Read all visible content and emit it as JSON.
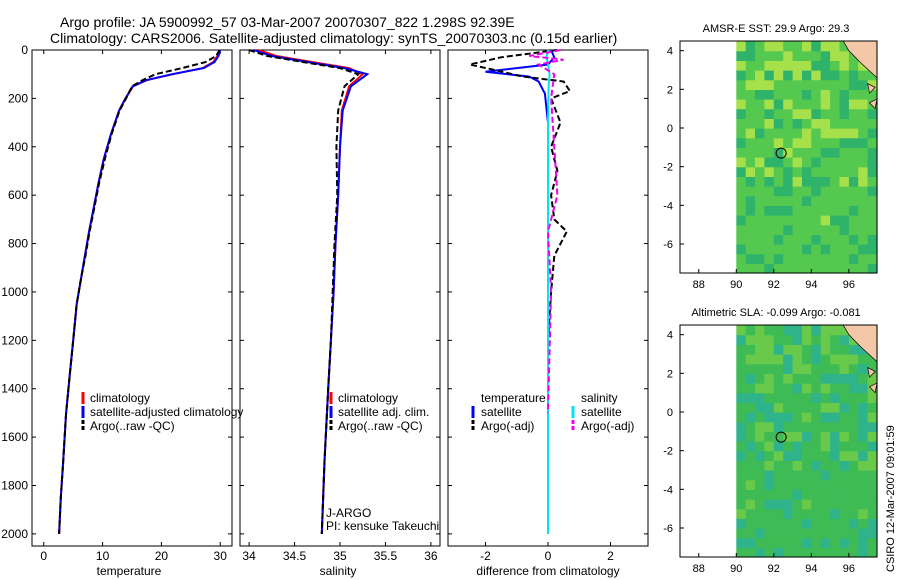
{
  "header": {
    "title_line1": "Argo profile: JA 5900992_57 03-Mar-2007 20070307_822 1.298S 92.39E",
    "title_line2": "Climatology: CARS2006. Satellite-adjusted climatology: synTS_20070303.nc (0.15d earlier)"
  },
  "footer": {
    "stamp": "CSIRO 12-Mar-2007 09:01:59"
  },
  "colors": {
    "climatology": "#ff0000",
    "satellite": "#0000ff",
    "argo": "#000000",
    "sat_salinity": "#00e5ee",
    "argo_salinity_adj": "#ee00ee",
    "land": "#f4c7a8"
  },
  "chart_data": [
    {
      "type": "line",
      "panel": "temperature",
      "xlabel": "temperature",
      "ylabel": "",
      "xlim": [
        -2,
        32
      ],
      "ylim": [
        2050,
        0
      ],
      "xticks": [
        0,
        10,
        20,
        30
      ],
      "yticks": [
        0,
        200,
        400,
        600,
        800,
        1000,
        1200,
        1400,
        1600,
        1800,
        2000
      ],
      "legend": [
        "climatology",
        "satellite-adjusted climatology",
        "Argo(..raw -QC)"
      ],
      "series": [
        {
          "name": "climatology",
          "style": "solid",
          "color": "#ff0000",
          "x": [
            29.9,
            29.5,
            28.8,
            27.0,
            22.0,
            17.5,
            15.2,
            13.9,
            12.8,
            11.4,
            10.2,
            9.3,
            8.5,
            7.7,
            7.0,
            6.3,
            5.6,
            5.0,
            4.4,
            3.8,
            3.3,
            2.9,
            2.6
          ],
          "y": [
            0,
            25,
            50,
            75,
            100,
            125,
            150,
            200,
            250,
            350,
            450,
            550,
            650,
            750,
            850,
            950,
            1050,
            1200,
            1350,
            1500,
            1700,
            1850,
            2000
          ]
        },
        {
          "name": "satellite-adjusted climatology",
          "style": "solid",
          "color": "#0000ff",
          "x": [
            30.0,
            29.7,
            29.0,
            27.2,
            21.8,
            17.4,
            15.1,
            13.9,
            12.8,
            11.4,
            10.2,
            9.3,
            8.5,
            7.7,
            7.0,
            6.3,
            5.6,
            5.0,
            4.4,
            3.8,
            3.3,
            2.9,
            2.6
          ],
          "y": [
            0,
            25,
            50,
            75,
            100,
            125,
            150,
            200,
            250,
            350,
            450,
            550,
            650,
            750,
            850,
            950,
            1050,
            1200,
            1350,
            1500,
            1700,
            1850,
            2000
          ]
        },
        {
          "name": "Argo(..raw -QC)",
          "style": "dashed",
          "color": "#000000",
          "x": [
            29.9,
            29.3,
            27.5,
            23.5,
            19.0,
            16.8,
            15.0,
            14.0,
            12.9,
            11.5,
            10.4,
            9.4,
            8.6,
            7.8,
            7.1,
            6.3,
            5.6,
            5.0,
            4.4,
            3.8,
            3.3,
            2.9,
            2.6
          ],
          "y": [
            0,
            25,
            50,
            75,
            100,
            125,
            150,
            200,
            250,
            350,
            450,
            550,
            650,
            750,
            850,
            950,
            1050,
            1200,
            1350,
            1500,
            1700,
            1850,
            2000
          ]
        }
      ]
    },
    {
      "type": "line",
      "panel": "salinity",
      "xlabel": "salinity",
      "ylabel": "",
      "xlim": [
        33.9,
        36.1
      ],
      "ylim": [
        2050,
        0
      ],
      "xticks": [
        34,
        34.5,
        35,
        35.5,
        36
      ],
      "legend": [
        "climatology",
        "satellite adj. clim.",
        "Argo(..raw -QC)"
      ],
      "annotation_line1": "J-ARGO",
      "annotation_line2": "PI: kensuke Takeuchi",
      "series": [
        {
          "name": "climatology",
          "style": "solid",
          "color": "#ff0000",
          "x": [
            34.1,
            34.3,
            34.7,
            35.1,
            35.25,
            35.1,
            35.02,
            35.0,
            34.98,
            34.95,
            34.93,
            34.9,
            34.87,
            34.83,
            34.8
          ],
          "y": [
            0,
            25,
            50,
            75,
            100,
            150,
            250,
            400,
            600,
            800,
            1000,
            1200,
            1400,
            1700,
            2000
          ]
        },
        {
          "name": "satellite adj. clim.",
          "style": "solid",
          "color": "#0000ff",
          "x": [
            34.05,
            34.25,
            34.65,
            35.05,
            35.3,
            35.12,
            35.03,
            35.0,
            34.98,
            34.95,
            34.93,
            34.9,
            34.87,
            34.83,
            34.8
          ],
          "y": [
            0,
            25,
            50,
            75,
            100,
            150,
            250,
            400,
            600,
            800,
            1000,
            1200,
            1400,
            1700,
            2000
          ]
        },
        {
          "name": "Argo(..raw -QC)",
          "style": "dashed",
          "color": "#000000",
          "x": [
            34.0,
            34.2,
            34.6,
            35.0,
            35.2,
            35.05,
            34.98,
            34.96,
            34.97,
            34.94,
            34.92,
            34.9,
            34.87,
            34.83,
            34.8
          ],
          "y": [
            0,
            25,
            50,
            75,
            100,
            150,
            250,
            400,
            600,
            800,
            1000,
            1200,
            1400,
            1700,
            2000
          ]
        }
      ]
    },
    {
      "type": "line",
      "panel": "difference",
      "xlabel": "difference from climatology",
      "ylabel": "",
      "xlim": [
        -3.2,
        3.2
      ],
      "ylim": [
        2050,
        0
      ],
      "xticks": [
        -2,
        0,
        2
      ],
      "legend_temperature_title": "temperature",
      "legend_salinity_title": "salinity",
      "legend_temperature": [
        "satellite",
        "Argo(-adj)"
      ],
      "legend_salinity": [
        "satellite",
        "Argo(-adj)"
      ],
      "series": [
        {
          "name": "temperature satellite",
          "style": "solid",
          "color": "#0000ff",
          "x": [
            0.1,
            0.2,
            0.0,
            -2.0,
            -0.6,
            -0.3,
            -0.1,
            0.0,
            0.0,
            0.0,
            0.0,
            0.0
          ],
          "y": [
            0,
            30,
            60,
            90,
            110,
            130,
            180,
            300,
            500,
            1000,
            1500,
            2000
          ]
        },
        {
          "name": "temperature Argo(-adj)",
          "style": "dashed",
          "color": "#000000",
          "x": [
            0.3,
            -1.5,
            -2.5,
            -1.8,
            -0.8,
            0.5,
            0.7,
            0.1,
            0.4,
            0.1,
            0.3,
            0.1,
            0.2,
            0.6,
            0.2,
            0.1,
            0.0,
            0.0,
            0.0
          ],
          "y": [
            0,
            30,
            60,
            80,
            110,
            130,
            170,
            200,
            300,
            400,
            500,
            600,
            700,
            750,
            850,
            1000,
            1200,
            1500,
            2000
          ]
        },
        {
          "name": "salinity satellite",
          "style": "solid",
          "color": "#00e5ee",
          "x": [
            0.0,
            -0.05,
            0.0,
            0.05,
            0.02,
            0.0,
            0.0,
            0.0,
            0.0
          ],
          "y": [
            0,
            30,
            60,
            100,
            150,
            300,
            600,
            1200,
            2000
          ]
        },
        {
          "name": "salinity Argo(-adj)",
          "style": "dashed",
          "color": "#ee00ee",
          "x": [
            0.4,
            -0.6,
            0.5,
            -0.3,
            0.2,
            0.1,
            0.3,
            0.0,
            0.1,
            0.0
          ],
          "y": [
            0,
            25,
            40,
            60,
            100,
            200,
            600,
            750,
            1000,
            1500
          ]
        }
      ]
    },
    {
      "type": "heatmap",
      "panel": "sst_map",
      "title": "AMSR-E SST: 29.9 Argo: 29.3",
      "xlim": [
        87,
        97.5
      ],
      "ylim": [
        -7.5,
        4.5
      ],
      "xticks": [
        88,
        90,
        92,
        94,
        96
      ],
      "yticks": [
        -6,
        -4,
        -2,
        0,
        2,
        4
      ],
      "data_extent_lon": [
        90,
        97.5
      ],
      "float_position": {
        "lon": 92.39,
        "lat": -1.298
      },
      "grid_colors": {
        "base": "#55c84f",
        "warm": "#a6e04a",
        "cool": "#2fb36a"
      }
    },
    {
      "type": "heatmap",
      "panel": "sla_map",
      "title": "Altimetric SLA: -0.099 Argo: -0.081",
      "xlim": [
        87,
        97.5
      ],
      "ylim": [
        -7.5,
        4.5
      ],
      "xticks": [
        88,
        90,
        92,
        94,
        96
      ],
      "yticks": [
        -6,
        -4,
        -2,
        0,
        2,
        4
      ],
      "data_extent_lon": [
        90,
        97.5
      ],
      "float_position": {
        "lon": 92.39,
        "lat": -1.298
      },
      "grid_colors": {
        "base": "#3fbb55",
        "warm": "#68c94a",
        "cool": "#2fb38a"
      }
    }
  ]
}
